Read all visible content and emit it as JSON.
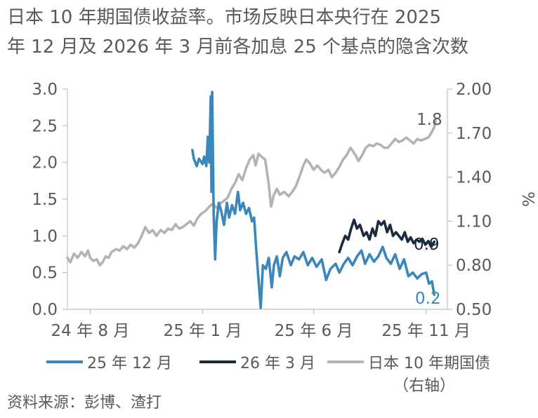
{
  "title": {
    "line1": "日本 10 年期国债收益率。市场反映日本央行在 2025",
    "line2": "年 12 月及 2026 年 3 月前各加息 25 个基点的隐含次数"
  },
  "source": "资料来源：彭博、渣打",
  "colors": {
    "dec25": "#3a87bb",
    "mar26": "#1b2a3f",
    "jgb": "#b3b3b3",
    "axis": "#bfbfbf",
    "text": "#595959"
  },
  "chart_data": {
    "type": "line",
    "x_ticks": [
      "24 年 8 月",
      "25 年 1 月",
      "25 年 6 月",
      "25 年 11 月"
    ],
    "y_left": {
      "ticks": [
        "3.0",
        "2.5",
        "2.0",
        "1.5",
        "1.0",
        "0.5",
        "0.0"
      ],
      "ylim": [
        0,
        3
      ]
    },
    "y_right": {
      "label": "%",
      "ticks": [
        "2.00",
        "1.70",
        "1.40",
        "1.10",
        "0.80",
        "0.50"
      ],
      "ylim": [
        0.5,
        2.0
      ]
    },
    "x_range": [
      "2024-07-01",
      "2025-11-30"
    ],
    "legend": [
      "25 年 12 月",
      "26 年 3 月",
      "日本 10 年期国债",
      "（右轴）"
    ],
    "end_labels": {
      "dec25": "0.2",
      "mar26": "0.9",
      "jgb": "1.8"
    },
    "series": [
      {
        "name": "25 年 12 月",
        "axis": "left",
        "color_key": "dec25",
        "points": [
          [
            "2024-12-18",
            2.17
          ],
          [
            "2024-12-20",
            2.05
          ],
          [
            "2024-12-24",
            1.95
          ],
          [
            "2024-12-27",
            2.05
          ],
          [
            "2025-01-01",
            1.98
          ],
          [
            "2025-01-03",
            2.08
          ],
          [
            "2025-01-06",
            1.95
          ],
          [
            "2025-01-08",
            2.35
          ],
          [
            "2025-01-10",
            2.0
          ],
          [
            "2025-01-12",
            2.9
          ],
          [
            "2025-01-13",
            1.6
          ],
          [
            "2025-01-14",
            2.96
          ],
          [
            "2025-01-16",
            1.3
          ],
          [
            "2025-01-18",
            0.68
          ],
          [
            "2025-01-20",
            1.2
          ],
          [
            "2025-01-23",
            1.45
          ],
          [
            "2025-01-26",
            1.35
          ],
          [
            "2025-01-30",
            1.15
          ],
          [
            "2025-02-03",
            1.45
          ],
          [
            "2025-02-06",
            1.25
          ],
          [
            "2025-02-10",
            1.42
          ],
          [
            "2025-02-14",
            1.3
          ],
          [
            "2025-02-18",
            1.6
          ],
          [
            "2025-02-21",
            1.35
          ],
          [
            "2025-02-25",
            1.45
          ],
          [
            "2025-03-01",
            1.3
          ],
          [
            "2025-03-05",
            1.38
          ],
          [
            "2025-03-09",
            1.2
          ],
          [
            "2025-03-12",
            1.25
          ],
          [
            "2025-03-15",
            0.8
          ],
          [
            "2025-03-18",
            0.4
          ],
          [
            "2025-03-21",
            0.02
          ],
          [
            "2025-03-24",
            0.6
          ],
          [
            "2025-03-28",
            0.55
          ],
          [
            "2025-04-01",
            0.7
          ],
          [
            "2025-04-05",
            0.3
          ],
          [
            "2025-04-08",
            0.6
          ],
          [
            "2025-04-12",
            0.72
          ],
          [
            "2025-04-16",
            0.45
          ],
          [
            "2025-04-20",
            0.7
          ],
          [
            "2025-04-25",
            0.78
          ],
          [
            "2025-05-01",
            0.6
          ],
          [
            "2025-05-06",
            0.72
          ],
          [
            "2025-05-12",
            0.68
          ],
          [
            "2025-05-18",
            0.78
          ],
          [
            "2025-05-24",
            0.6
          ],
          [
            "2025-05-30",
            0.7
          ],
          [
            "2025-06-05",
            0.58
          ],
          [
            "2025-06-12",
            0.68
          ],
          [
            "2025-06-18",
            0.4
          ],
          [
            "2025-06-24",
            0.55
          ],
          [
            "2025-07-01",
            0.62
          ],
          [
            "2025-07-06",
            0.5
          ],
          [
            "2025-07-12",
            0.62
          ],
          [
            "2025-07-18",
            0.7
          ],
          [
            "2025-07-24",
            0.6
          ],
          [
            "2025-07-30",
            0.72
          ],
          [
            "2025-08-05",
            0.8
          ],
          [
            "2025-08-10",
            0.62
          ],
          [
            "2025-08-16",
            0.75
          ],
          [
            "2025-08-22",
            0.65
          ],
          [
            "2025-08-28",
            0.72
          ],
          [
            "2025-09-03",
            0.85
          ],
          [
            "2025-09-08",
            0.7
          ],
          [
            "2025-09-14",
            0.62
          ],
          [
            "2025-09-20",
            0.75
          ],
          [
            "2025-09-26",
            0.55
          ],
          [
            "2025-10-02",
            0.68
          ],
          [
            "2025-10-08",
            0.45
          ],
          [
            "2025-10-14",
            0.5
          ],
          [
            "2025-10-20",
            0.42
          ],
          [
            "2025-10-26",
            0.48
          ],
          [
            "2025-11-01",
            0.5
          ],
          [
            "2025-11-05",
            0.35
          ],
          [
            "2025-11-09",
            0.38
          ],
          [
            "2025-11-12",
            0.2
          ]
        ]
      },
      {
        "name": "26 年 3 月",
        "axis": "left",
        "color_key": "mar26",
        "points": [
          [
            "2025-07-06",
            0.78
          ],
          [
            "2025-07-10",
            0.9
          ],
          [
            "2025-07-14",
            1.0
          ],
          [
            "2025-07-18",
            0.95
          ],
          [
            "2025-07-22",
            1.1
          ],
          [
            "2025-07-26",
            1.22
          ],
          [
            "2025-07-30",
            1.1
          ],
          [
            "2025-08-03",
            1.15
          ],
          [
            "2025-08-08",
            1.0
          ],
          [
            "2025-08-12",
            1.05
          ],
          [
            "2025-08-16",
            0.95
          ],
          [
            "2025-08-20",
            1.1
          ],
          [
            "2025-08-24",
            1.0
          ],
          [
            "2025-08-28",
            1.2
          ],
          [
            "2025-09-01",
            1.15
          ],
          [
            "2025-09-05",
            1.2
          ],
          [
            "2025-09-09",
            1.05
          ],
          [
            "2025-09-13",
            1.15
          ],
          [
            "2025-09-17",
            1.0
          ],
          [
            "2025-09-21",
            1.05
          ],
          [
            "2025-09-25",
            1.0
          ],
          [
            "2025-09-29",
            0.95
          ],
          [
            "2025-10-03",
            1.05
          ],
          [
            "2025-10-07",
            0.92
          ],
          [
            "2025-10-11",
            0.98
          ],
          [
            "2025-10-15",
            0.9
          ],
          [
            "2025-10-19",
            0.95
          ],
          [
            "2025-10-23",
            0.92
          ],
          [
            "2025-10-27",
            0.96
          ],
          [
            "2025-10-31",
            0.88
          ],
          [
            "2025-11-04",
            0.93
          ],
          [
            "2025-11-08",
            0.85
          ],
          [
            "2025-11-12",
            0.92
          ]
        ]
      },
      {
        "name": "日本 10 年期国债",
        "axis": "right",
        "color_key": "jgb",
        "points": [
          [
            "2024-07-01",
            0.85
          ],
          [
            "2024-07-05",
            0.82
          ],
          [
            "2024-07-10",
            0.88
          ],
          [
            "2024-07-15",
            0.85
          ],
          [
            "2024-07-20",
            0.89
          ],
          [
            "2024-07-25",
            0.86
          ],
          [
            "2024-07-29",
            0.9
          ],
          [
            "2024-08-01",
            0.85
          ],
          [
            "2024-08-05",
            0.83
          ],
          [
            "2024-08-10",
            0.84
          ],
          [
            "2024-08-14",
            0.8
          ],
          [
            "2024-08-18",
            0.82
          ],
          [
            "2024-08-22",
            0.86
          ],
          [
            "2024-08-26",
            0.85
          ],
          [
            "2024-08-30",
            0.89
          ],
          [
            "2024-09-05",
            0.91
          ],
          [
            "2024-09-10",
            0.9
          ],
          [
            "2024-09-15",
            0.93
          ],
          [
            "2024-09-20",
            0.91
          ],
          [
            "2024-09-25",
            0.94
          ],
          [
            "2024-09-30",
            0.92
          ],
          [
            "2024-10-05",
            0.95
          ],
          [
            "2024-10-10",
            1.0
          ],
          [
            "2024-10-15",
            1.06
          ],
          [
            "2024-10-20",
            1.02
          ],
          [
            "2024-10-25",
            1.04
          ],
          [
            "2024-10-30",
            1.0
          ],
          [
            "2024-11-05",
            1.04
          ],
          [
            "2024-11-10",
            1.02
          ],
          [
            "2024-11-15",
            1.05
          ],
          [
            "2024-11-20",
            1.04
          ],
          [
            "2024-11-25",
            1.08
          ],
          [
            "2024-11-30",
            1.05
          ],
          [
            "2024-12-05",
            1.06
          ],
          [
            "2024-12-10",
            1.08
          ],
          [
            "2024-12-15",
            1.1
          ],
          [
            "2024-12-20",
            1.07
          ],
          [
            "2024-12-25",
            1.12
          ],
          [
            "2024-12-30",
            1.15
          ],
          [
            "2025-01-05",
            1.17
          ],
          [
            "2025-01-10",
            1.2
          ],
          [
            "2025-01-15",
            1.22
          ],
          [
            "2025-01-20",
            1.19
          ],
          [
            "2025-01-25",
            1.22
          ],
          [
            "2025-01-30",
            1.24
          ],
          [
            "2025-02-04",
            1.26
          ],
          [
            "2025-02-09",
            1.32
          ],
          [
            "2025-02-14",
            1.36
          ],
          [
            "2025-02-19",
            1.42
          ],
          [
            "2025-02-24",
            1.38
          ],
          [
            "2025-03-01",
            1.46
          ],
          [
            "2025-03-06",
            1.52
          ],
          [
            "2025-03-11",
            1.55
          ],
          [
            "2025-03-14",
            1.48
          ],
          [
            "2025-03-18",
            1.56
          ],
          [
            "2025-03-22",
            1.54
          ],
          [
            "2025-03-27",
            1.52
          ],
          [
            "2025-04-01",
            1.35
          ],
          [
            "2025-04-04",
            1.2
          ],
          [
            "2025-04-08",
            1.28
          ],
          [
            "2025-04-12",
            1.32
          ],
          [
            "2025-04-16",
            1.28
          ],
          [
            "2025-04-22",
            1.3
          ],
          [
            "2025-04-28",
            1.27
          ],
          [
            "2025-05-03",
            1.3
          ],
          [
            "2025-05-08",
            1.34
          ],
          [
            "2025-05-14",
            1.42
          ],
          [
            "2025-05-18",
            1.48
          ],
          [
            "2025-05-22",
            1.52
          ],
          [
            "2025-05-26",
            1.5
          ],
          [
            "2025-06-01",
            1.45
          ],
          [
            "2025-06-06",
            1.48
          ],
          [
            "2025-06-11",
            1.45
          ],
          [
            "2025-06-16",
            1.43
          ],
          [
            "2025-06-21",
            1.45
          ],
          [
            "2025-06-26",
            1.4
          ],
          [
            "2025-07-01",
            1.43
          ],
          [
            "2025-07-06",
            1.47
          ],
          [
            "2025-07-11",
            1.52
          ],
          [
            "2025-07-16",
            1.55
          ],
          [
            "2025-07-21",
            1.6
          ],
          [
            "2025-07-24",
            1.58
          ],
          [
            "2025-07-28",
            1.55
          ],
          [
            "2025-08-01",
            1.51
          ],
          [
            "2025-08-06",
            1.55
          ],
          [
            "2025-08-11",
            1.6
          ],
          [
            "2025-08-16",
            1.62
          ],
          [
            "2025-08-21",
            1.61
          ],
          [
            "2025-08-26",
            1.63
          ],
          [
            "2025-08-31",
            1.62
          ],
          [
            "2025-09-05",
            1.6
          ],
          [
            "2025-09-10",
            1.6
          ],
          [
            "2025-09-15",
            1.63
          ],
          [
            "2025-09-20",
            1.66
          ],
          [
            "2025-09-25",
            1.64
          ],
          [
            "2025-09-30",
            1.65
          ],
          [
            "2025-10-05",
            1.67
          ],
          [
            "2025-10-10",
            1.65
          ],
          [
            "2025-10-15",
            1.63
          ],
          [
            "2025-10-20",
            1.66
          ],
          [
            "2025-10-25",
            1.65
          ],
          [
            "2025-10-30",
            1.66
          ],
          [
            "2025-11-04",
            1.67
          ],
          [
            "2025-11-08",
            1.7
          ],
          [
            "2025-11-12",
            1.74
          ],
          [
            "2025-11-14",
            1.79
          ]
        ]
      }
    ]
  }
}
